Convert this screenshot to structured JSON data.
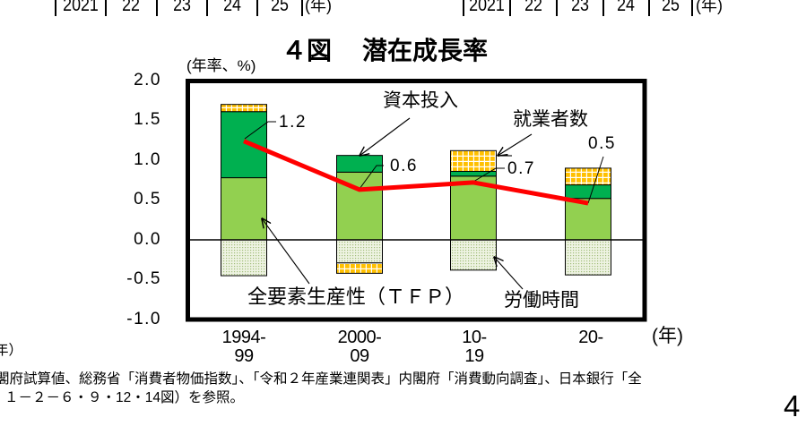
{
  "top_axis": {
    "left": {
      "labels": [
        "2021",
        "22",
        "23",
        "24",
        "25"
      ],
      "unit": "(年)"
    },
    "right": {
      "labels": [
        "2021",
        "22",
        "23",
        "24",
        "25"
      ],
      "unit": "(年)"
    }
  },
  "chart_data": {
    "type": "bar",
    "subtype": "stacked_bar_with_line",
    "title": "４図　潜在成長率",
    "title_number": "４図",
    "title_text": "潜在成長率",
    "ylabel": "(年率、%)",
    "xlabel": "(年)",
    "ylim": [
      -1.0,
      2.0
    ],
    "yticks": [
      2.0,
      1.5,
      1.0,
      0.5,
      0.0,
      -0.5,
      -1.0
    ],
    "ytick_labels": [
      "2.0",
      "1.5",
      "1.0",
      "0.5",
      "0.0",
      "-0.5",
      "-1.0"
    ],
    "grid": false,
    "legend": "inline annotations with leader arrows",
    "categories": [
      "1994-\n99",
      "2000-\n09",
      "10-\n19",
      "20-"
    ],
    "series": [
      {
        "name": "全要素生産性（ＴＦＰ）",
        "type": "bar",
        "color": "#92D050",
        "values": [
          0.78,
          0.85,
          0.8,
          0.52
        ]
      },
      {
        "name": "資本投入",
        "type": "bar",
        "color": "#00B050",
        "values": [
          0.83,
          0.21,
          0.06,
          0.17
        ]
      },
      {
        "name": "労働時間",
        "type": "bar",
        "color": "#EEF3E2",
        "pattern": "dots",
        "values": [
          -0.45,
          -0.29,
          -0.38,
          -0.44
        ]
      },
      {
        "name": "就業者数",
        "type": "bar",
        "color": "#FFC000",
        "pattern": "grid",
        "values": [
          0.09,
          -0.13,
          0.26,
          0.21
        ]
      },
      {
        "name": "潜在成長率",
        "type": "line",
        "color": "#FF0000",
        "values": [
          1.24,
          0.63,
          0.72,
          0.46
        ],
        "labels": [
          "1.2",
          "0.6",
          "0.7",
          "0.5"
        ]
      }
    ]
  },
  "footnotes": {
    "unit_fragment": "年）",
    "line1": "閣府試算値、総務省「消費者物価指数」、「令和２年産業連関表」内閣府「消費動向調査」、日本銀行「全",
    "line2": "１－２－６・９・12・14図）を参照。"
  },
  "page_number": "4"
}
